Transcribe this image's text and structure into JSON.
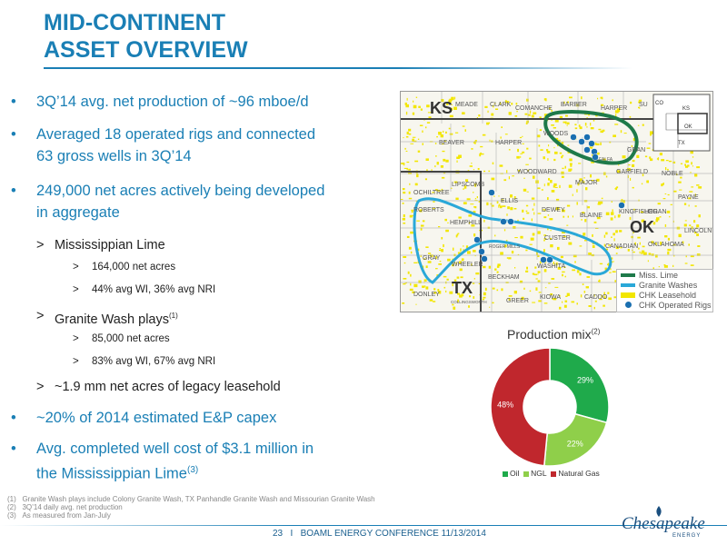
{
  "title": {
    "line1": "MID-CONTINENT",
    "line2": "ASSET OVERVIEW"
  },
  "bullets": [
    {
      "text": "3Q’14 avg. net production of ~96 mboe/d"
    },
    {
      "line1": "Averaged 18 operated rigs and connected",
      "line2": "63 gross wells in 3Q’14"
    },
    {
      "line1": "249,000 net acres actively being developed",
      "line2": "in aggregate"
    },
    {
      "text": "~20% of 2014 estimated E&P capex"
    },
    {
      "line1": "Avg. completed well cost of $3.1 million in",
      "line2": "the Mississippian Lime",
      "sup": "(3)"
    }
  ],
  "sub_bullets": {
    "miss_lime": "Mississippian Lime",
    "miss_lime_acres": "164,000 net acres",
    "miss_lime_wi": "44% avg WI, 36% avg NRI",
    "granite_wash": "Granite Wash plays",
    "granite_wash_sup": "(1)",
    "granite_acres": "85,000 net acres",
    "granite_wi": "83% avg WI, 67% avg NRI",
    "legacy": "~1.9 mm net acres of legacy leasehold"
  },
  "bullet_symbol": "•",
  "sub_symbol": ">",
  "map": {
    "state_labels": [
      "KS",
      "OK",
      "TX"
    ],
    "inset_labels": [
      "CO",
      "KS",
      "OK",
      "TX"
    ],
    "counties": [
      "MEADE",
      "CLARK",
      "COMANCHE",
      "BARBER",
      "HARPER",
      "SU",
      "BEAVER",
      "HARPER",
      "WOODS",
      "GRAN",
      "WOODWARD",
      "MAJOR",
      "GARFIELD",
      "NOBLE",
      "OCHILTREE",
      "LIPSCOMB",
      "ELLIS",
      "PAYNE",
      "ROBERTS",
      "HEMPHILL",
      "DEWEY",
      "BLAINE",
      "KINGFISHER",
      "LOGAN",
      "LINCOLN",
      "CUSTER",
      "CANADIAN",
      "OKLAHOMA",
      "GRAY",
      "WHEELER",
      "ROGER MILLS",
      "WASHITA",
      "DONLEY",
      "BECKHAM",
      "GREER",
      "KIOWA",
      "CADDO",
      "COLLINGSWORTH",
      "ALFALFA"
    ],
    "legend": [
      "Miss. Lime",
      "Granite Washes",
      "CHK Leasehold",
      "CHK Operated Rigs"
    ],
    "colors": {
      "miss_lime": "#1e7a4a",
      "granite": "#2aa8d8",
      "leasehold": "#f2e600",
      "rig": "#1a6fb0"
    }
  },
  "chart_data": {
    "type": "pie",
    "title": "Production mix",
    "title_sup": "(2)",
    "categories": [
      "Oil",
      "NGL",
      "Natural Gas"
    ],
    "values": [
      29,
      22,
      48
    ],
    "labels": [
      "29%",
      "22%",
      "48%"
    ],
    "colors": [
      "#1faa4b",
      "#8fcf4a",
      "#c0272d"
    ],
    "donut": true
  },
  "notes": [
    {
      "num": "(1)",
      "text": "Granite Wash plays include Colony Granite Wash, TX Panhandle Granite Wash and Missourian Granite Wash"
    },
    {
      "num": "(2)",
      "text": "3Q’14 daily avg. net production"
    },
    {
      "num": "(3)",
      "text": "As measured from Jan-July"
    }
  ],
  "footer": {
    "page": "23",
    "sep": "I",
    "event": "BOAML ENERGY CONFERENCE 11/13/2014"
  },
  "logo": {
    "word": "Chesapeake",
    "sub": "ENERGY"
  }
}
